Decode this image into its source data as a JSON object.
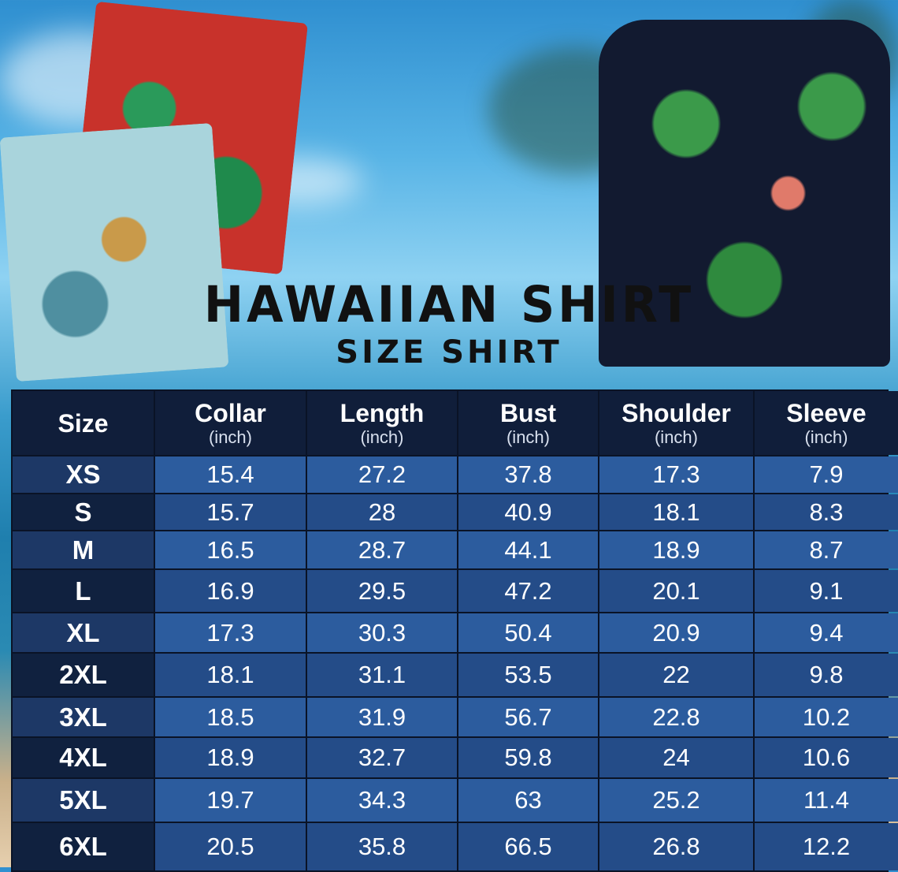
{
  "title": "HAWAIIAN SHIRT",
  "subtitle": "SIZE SHIRT",
  "colors": {
    "header": "#101e3a",
    "row_light": "#2c5c9e",
    "row_dark": "#244c88",
    "size_col": "#10213f"
  },
  "table": {
    "headers": [
      {
        "label": "Size",
        "unit": ""
      },
      {
        "label": "Collar",
        "unit": "(inch)"
      },
      {
        "label": "Length",
        "unit": "(inch)"
      },
      {
        "label": "Bust",
        "unit": "(inch)"
      },
      {
        "label": "Shoulder",
        "unit": "(inch)"
      },
      {
        "label": "Sleeve",
        "unit": "(inch)"
      }
    ],
    "rows": [
      [
        "XS",
        "15.4",
        "27.2",
        "37.8",
        "17.3",
        "7.9"
      ],
      [
        "S",
        "15.7",
        "28",
        "40.9",
        "18.1",
        "8.3"
      ],
      [
        "M",
        "16.5",
        "28.7",
        "44.1",
        "18.9",
        "8.7"
      ],
      [
        "L",
        "16.9",
        "29.5",
        "47.2",
        "20.1",
        "9.1"
      ],
      [
        "XL",
        "17.3",
        "30.3",
        "50.4",
        "20.9",
        "9.4"
      ],
      [
        "2XL",
        "18.1",
        "31.1",
        "53.5",
        "22",
        "9.8"
      ],
      [
        "3XL",
        "18.5",
        "31.9",
        "56.7",
        "22.8",
        "10.2"
      ],
      [
        "4XL",
        "18.9",
        "32.7",
        "59.8",
        "24",
        "10.6"
      ],
      [
        "5XL",
        "19.7",
        "34.3",
        "63",
        "25.2",
        "11.4"
      ],
      [
        "6XL",
        "20.5",
        "35.8",
        "66.5",
        "26.8",
        "12.2"
      ]
    ]
  }
}
